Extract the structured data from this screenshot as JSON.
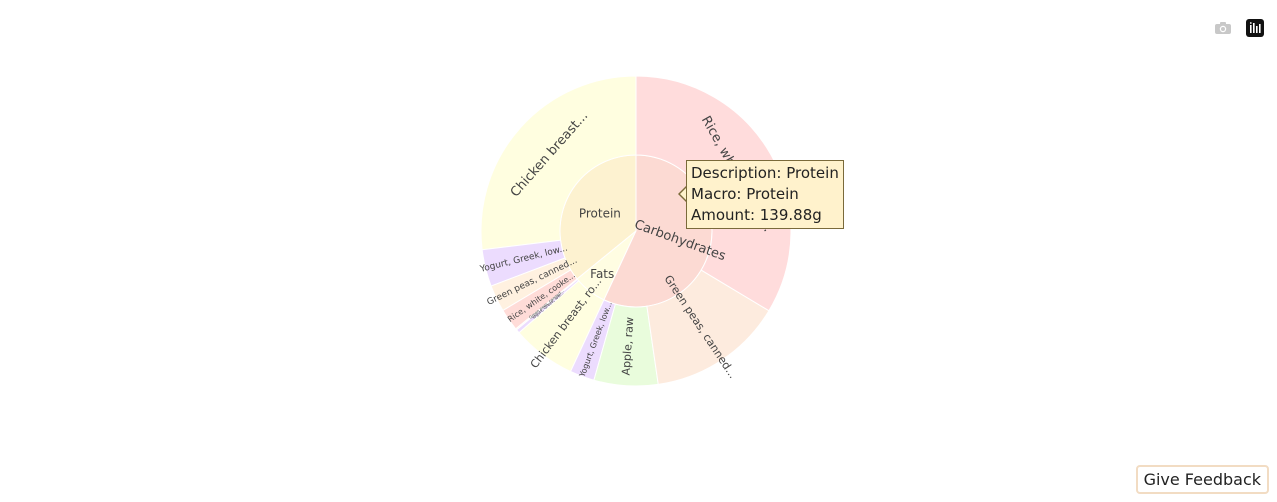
{
  "chart_data": {
    "type": "sunburst",
    "inner": [
      {
        "name": "Protein",
        "value": 139.88,
        "color": "#fdf2d0"
      },
      {
        "name": "Fats",
        "value": 28,
        "color": "#fffde2"
      },
      {
        "name": "Carbohydrates",
        "value": 222,
        "color": "#fcdad3"
      }
    ],
    "outer": [
      {
        "parent": "Protein",
        "label": "Chicken breast...",
        "value": 105,
        "color": "#fffee0"
      },
      {
        "parent": "Protein",
        "label": "Yogurt, Greek, low...",
        "value": 15,
        "color": "#ecdcfe"
      },
      {
        "parent": "Protein",
        "label": "Green peas, canned...",
        "value": 10.88,
        "color": "#fff1e0"
      },
      {
        "parent": "Protein",
        "label": "Rice, white, cooke...",
        "value": 9,
        "color": "#ffdcd8"
      },
      {
        "parent": "Fats",
        "label": "Green peas, canned...",
        "value": 0.5,
        "color": "#fff1e0"
      },
      {
        "parent": "Fats",
        "label": "Yogurt, Greek, low...",
        "value": 1.5,
        "color": "#ecdcfe"
      },
      {
        "parent": "Fats",
        "label": "Chicken breast, ro...",
        "value": 26,
        "color": "#fffee0"
      },
      {
        "parent": "Carbohydrates",
        "label": "Yogurt, Greek, low...",
        "value": 10,
        "color": "#ecdcfe"
      },
      {
        "parent": "Carbohydrates",
        "label": "Apple, raw",
        "value": 26,
        "color": "#e9fcdc"
      },
      {
        "parent": "Carbohydrates",
        "label": "Green peas, canned...",
        "value": 55,
        "color": "#fdebde"
      },
      {
        "parent": "Carbohydrates",
        "label": "Rice, white, cooke...",
        "value": 131,
        "color": "#ffdcdc"
      }
    ]
  },
  "tooltip": {
    "line1": "Description: Protein",
    "line2": "Macro: Protein",
    "line3": "Amount: 139.88g"
  },
  "modebar": {
    "camera_icon": "camera-icon",
    "plotly_logo": "plotly-logo-icon"
  },
  "feedback": {
    "label": "Give Feedback"
  }
}
